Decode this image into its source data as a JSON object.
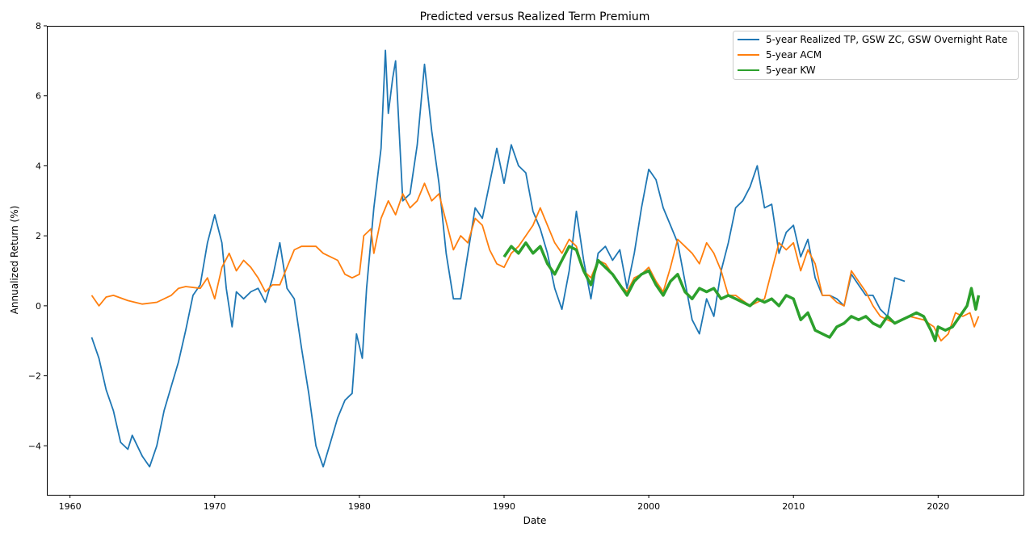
{
  "chart_data": {
    "type": "line",
    "title": "Predicted versus Realized Term Premium",
    "xlabel": "Date",
    "ylabel": "Annualized Return (%)",
    "xlim": [
      1958.4,
      2025.9
    ],
    "ylim": [
      -5.4,
      8
    ],
    "xticks": [
      1960,
      1970,
      1980,
      1990,
      2000,
      2010,
      2020
    ],
    "yticks": [
      -4,
      -2,
      0,
      2,
      4,
      6,
      8
    ],
    "ytick_labels": [
      "−4",
      "−2",
      "0",
      "2",
      "4",
      "6",
      "8"
    ],
    "grid": false,
    "legend_position": "top-right",
    "series": [
      {
        "name": "5-year Realized TP, GSW ZC, GSW Overnight Rate",
        "color": "#1f77b4",
        "points": [
          [
            1961.5,
            -0.9
          ],
          [
            1962,
            -1.5
          ],
          [
            1962.5,
            -2.4
          ],
          [
            1963,
            -3.0
          ],
          [
            1963.5,
            -3.9
          ],
          [
            1964,
            -4.1
          ],
          [
            1964.3,
            -3.7
          ],
          [
            1965,
            -4.3
          ],
          [
            1965.5,
            -4.6
          ],
          [
            1966,
            -4.0
          ],
          [
            1966.5,
            -3.0
          ],
          [
            1967,
            -2.3
          ],
          [
            1967.5,
            -1.6
          ],
          [
            1968,
            -0.7
          ],
          [
            1968.5,
            0.3
          ],
          [
            1969,
            0.6
          ],
          [
            1969.5,
            1.8
          ],
          [
            1970,
            2.6
          ],
          [
            1970.5,
            1.8
          ],
          [
            1970.8,
            0.5
          ],
          [
            1971.2,
            -0.6
          ],
          [
            1971.5,
            0.4
          ],
          [
            1972,
            0.2
          ],
          [
            1972.5,
            0.4
          ],
          [
            1973,
            0.5
          ],
          [
            1973.5,
            0.1
          ],
          [
            1974,
            0.8
          ],
          [
            1974.5,
            1.8
          ],
          [
            1975,
            0.5
          ],
          [
            1975.5,
            0.2
          ],
          [
            1976,
            -1.2
          ],
          [
            1976.5,
            -2.5
          ],
          [
            1977,
            -4.0
          ],
          [
            1977.5,
            -4.6
          ],
          [
            1978,
            -3.9
          ],
          [
            1978.5,
            -3.2
          ],
          [
            1979,
            -2.7
          ],
          [
            1979.5,
            -2.5
          ],
          [
            1979.8,
            -0.8
          ],
          [
            1980.2,
            -1.5
          ],
          [
            1980.5,
            0.5
          ],
          [
            1981,
            2.8
          ],
          [
            1981.5,
            4.5
          ],
          [
            1981.8,
            7.3
          ],
          [
            1982,
            5.5
          ],
          [
            1982.3,
            6.5
          ],
          [
            1982.5,
            7.0
          ],
          [
            1983,
            3.0
          ],
          [
            1983.5,
            3.2
          ],
          [
            1984,
            4.6
          ],
          [
            1984.5,
            6.9
          ],
          [
            1985,
            5.0
          ],
          [
            1985.5,
            3.5
          ],
          [
            1986,
            1.5
          ],
          [
            1986.5,
            0.2
          ],
          [
            1987,
            0.2
          ],
          [
            1987.5,
            1.5
          ],
          [
            1988,
            2.8
          ],
          [
            1988.5,
            2.5
          ],
          [
            1989,
            3.5
          ],
          [
            1989.5,
            4.5
          ],
          [
            1990,
            3.5
          ],
          [
            1990.5,
            4.6
          ],
          [
            1991,
            4.0
          ],
          [
            1991.5,
            3.8
          ],
          [
            1992,
            2.7
          ],
          [
            1992.5,
            2.2
          ],
          [
            1993,
            1.5
          ],
          [
            1993.5,
            0.5
          ],
          [
            1994,
            -0.1
          ],
          [
            1994.5,
            1.0
          ],
          [
            1995,
            2.7
          ],
          [
            1995.5,
            1.3
          ],
          [
            1996,
            0.2
          ],
          [
            1996.5,
            1.5
          ],
          [
            1997,
            1.7
          ],
          [
            1997.5,
            1.3
          ],
          [
            1998,
            1.6
          ],
          [
            1998.5,
            0.5
          ],
          [
            1999,
            1.5
          ],
          [
            1999.5,
            2.8
          ],
          [
            2000,
            3.9
          ],
          [
            2000.5,
            3.6
          ],
          [
            2001,
            2.8
          ],
          [
            2001.5,
            2.3
          ],
          [
            2002,
            1.8
          ],
          [
            2002.5,
            0.7
          ],
          [
            2003,
            -0.4
          ],
          [
            2003.5,
            -0.8
          ],
          [
            2004,
            0.2
          ],
          [
            2004.5,
            -0.3
          ],
          [
            2005,
            1.0
          ],
          [
            2005.5,
            1.8
          ],
          [
            2006,
            2.8
          ],
          [
            2006.5,
            3.0
          ],
          [
            2007,
            3.4
          ],
          [
            2007.5,
            4.0
          ],
          [
            2008,
            2.8
          ],
          [
            2008.5,
            2.9
          ],
          [
            2009,
            1.5
          ],
          [
            2009.5,
            2.1
          ],
          [
            2010,
            2.3
          ],
          [
            2010.5,
            1.4
          ],
          [
            2011,
            1.9
          ],
          [
            2011.5,
            0.8
          ],
          [
            2012,
            0.3
          ],
          [
            2012.5,
            0.3
          ],
          [
            2013,
            0.2
          ],
          [
            2013.5,
            0.0
          ],
          [
            2014,
            0.9
          ],
          [
            2014.5,
            0.6
          ],
          [
            2015,
            0.3
          ],
          [
            2015.5,
            0.3
          ],
          [
            2016,
            -0.1
          ],
          [
            2016.5,
            -0.3
          ],
          [
            2017,
            0.8
          ],
          [
            2017.7,
            0.7
          ]
        ]
      },
      {
        "name": "5-year ACM",
        "color": "#ff7f0e",
        "points": [
          [
            1961.5,
            0.3
          ],
          [
            1962,
            0.0
          ],
          [
            1962.5,
            0.25
          ],
          [
            1963,
            0.3
          ],
          [
            1964,
            0.15
          ],
          [
            1965,
            0.05
          ],
          [
            1966,
            0.1
          ],
          [
            1967,
            0.3
          ],
          [
            1967.5,
            0.5
          ],
          [
            1968,
            0.55
          ],
          [
            1969,
            0.5
          ],
          [
            1969.5,
            0.8
          ],
          [
            1970,
            0.2
          ],
          [
            1970.5,
            1.1
          ],
          [
            1971,
            1.5
          ],
          [
            1971.5,
            1.0
          ],
          [
            1972,
            1.3
          ],
          [
            1972.5,
            1.1
          ],
          [
            1973,
            0.8
          ],
          [
            1973.5,
            0.4
          ],
          [
            1974,
            0.6
          ],
          [
            1974.5,
            0.6
          ],
          [
            1975,
            1.1
          ],
          [
            1975.5,
            1.6
          ],
          [
            1976,
            1.7
          ],
          [
            1977,
            1.7
          ],
          [
            1977.5,
            1.5
          ],
          [
            1978,
            1.4
          ],
          [
            1978.5,
            1.3
          ],
          [
            1979,
            0.9
          ],
          [
            1979.5,
            0.8
          ],
          [
            1980,
            0.9
          ],
          [
            1980.3,
            2.0
          ],
          [
            1980.8,
            2.2
          ],
          [
            1981,
            1.5
          ],
          [
            1981.5,
            2.5
          ],
          [
            1982,
            3.0
          ],
          [
            1982.5,
            2.6
          ],
          [
            1983,
            3.2
          ],
          [
            1983.5,
            2.8
          ],
          [
            1984,
            3.0
          ],
          [
            1984.5,
            3.5
          ],
          [
            1985,
            3.0
          ],
          [
            1985.5,
            3.2
          ],
          [
            1986,
            2.4
          ],
          [
            1986.5,
            1.6
          ],
          [
            1987,
            2.0
          ],
          [
            1987.5,
            1.8
          ],
          [
            1988,
            2.5
          ],
          [
            1988.5,
            2.3
          ],
          [
            1989,
            1.6
          ],
          [
            1989.5,
            1.2
          ],
          [
            1990,
            1.1
          ],
          [
            1990.5,
            1.5
          ],
          [
            1991,
            1.7
          ],
          [
            1991.5,
            2.0
          ],
          [
            1992,
            2.3
          ],
          [
            1992.5,
            2.8
          ],
          [
            1993,
            2.3
          ],
          [
            1993.5,
            1.8
          ],
          [
            1994,
            1.5
          ],
          [
            1994.5,
            1.9
          ],
          [
            1995,
            1.7
          ],
          [
            1995.5,
            1.0
          ],
          [
            1996,
            0.8
          ],
          [
            1996.5,
            1.3
          ],
          [
            1997,
            1.2
          ],
          [
            1997.5,
            0.9
          ],
          [
            1998,
            0.6
          ],
          [
            1998.5,
            0.4
          ],
          [
            1999,
            0.8
          ],
          [
            1999.5,
            0.9
          ],
          [
            2000,
            1.1
          ],
          [
            2000.5,
            0.7
          ],
          [
            2001,
            0.4
          ],
          [
            2001.5,
            1.1
          ],
          [
            2002,
            1.9
          ],
          [
            2002.5,
            1.7
          ],
          [
            2003,
            1.5
          ],
          [
            2003.5,
            1.2
          ],
          [
            2004,
            1.8
          ],
          [
            2004.5,
            1.5
          ],
          [
            2005,
            1.0
          ],
          [
            2005.5,
            0.3
          ],
          [
            2006,
            0.3
          ],
          [
            2007,
            0.0
          ],
          [
            2007.5,
            0.1
          ],
          [
            2008,
            0.2
          ],
          [
            2008.5,
            1.0
          ],
          [
            2009,
            1.8
          ],
          [
            2009.5,
            1.6
          ],
          [
            2010,
            1.8
          ],
          [
            2010.5,
            1.0
          ],
          [
            2011,
            1.6
          ],
          [
            2011.5,
            1.2
          ],
          [
            2012,
            0.3
          ],
          [
            2012.5,
            0.3
          ],
          [
            2013,
            0.1
          ],
          [
            2013.5,
            0.0
          ],
          [
            2014,
            1.0
          ],
          [
            2014.5,
            0.7
          ],
          [
            2015,
            0.4
          ],
          [
            2015.5,
            0.0
          ],
          [
            2016,
            -0.3
          ],
          [
            2016.5,
            -0.4
          ],
          [
            2017,
            -0.5
          ],
          [
            2018,
            -0.3
          ],
          [
            2019,
            -0.4
          ],
          [
            2019.7,
            -0.6
          ],
          [
            2020.2,
            -1.0
          ],
          [
            2020.7,
            -0.8
          ],
          [
            2021.2,
            -0.2
          ],
          [
            2021.7,
            -0.3
          ],
          [
            2022.2,
            -0.2
          ],
          [
            2022.5,
            -0.6
          ],
          [
            2022.8,
            -0.3
          ]
        ]
      },
      {
        "name": "5-year KW",
        "color": "#2ca02c",
        "points": [
          [
            1990,
            1.4
          ],
          [
            1990.5,
            1.7
          ],
          [
            1991,
            1.5
          ],
          [
            1991.5,
            1.8
          ],
          [
            1992,
            1.5
          ],
          [
            1992.5,
            1.7
          ],
          [
            1993,
            1.2
          ],
          [
            1993.5,
            0.9
          ],
          [
            1994,
            1.3
          ],
          [
            1994.5,
            1.7
          ],
          [
            1995,
            1.6
          ],
          [
            1995.5,
            1.0
          ],
          [
            1996,
            0.6
          ],
          [
            1996.5,
            1.3
          ],
          [
            1997,
            1.1
          ],
          [
            1997.5,
            0.9
          ],
          [
            1998,
            0.6
          ],
          [
            1998.5,
            0.3
          ],
          [
            1999,
            0.7
          ],
          [
            1999.5,
            0.9
          ],
          [
            2000,
            1.0
          ],
          [
            2000.5,
            0.6
          ],
          [
            2001,
            0.3
          ],
          [
            2001.5,
            0.7
          ],
          [
            2002,
            0.9
          ],
          [
            2002.5,
            0.4
          ],
          [
            2003,
            0.2
          ],
          [
            2003.5,
            0.5
          ],
          [
            2004,
            0.4
          ],
          [
            2004.5,
            0.5
          ],
          [
            2005,
            0.2
          ],
          [
            2005.5,
            0.3
          ],
          [
            2006,
            0.2
          ],
          [
            2006.5,
            0.1
          ],
          [
            2007,
            0.0
          ],
          [
            2007.5,
            0.2
          ],
          [
            2008,
            0.1
          ],
          [
            2008.5,
            0.2
          ],
          [
            2009,
            0.0
          ],
          [
            2009.5,
            0.3
          ],
          [
            2010,
            0.2
          ],
          [
            2010.5,
            -0.4
          ],
          [
            2011,
            -0.2
          ],
          [
            2011.5,
            -0.7
          ],
          [
            2012,
            -0.8
          ],
          [
            2012.5,
            -0.9
          ],
          [
            2013,
            -0.6
          ],
          [
            2013.5,
            -0.5
          ],
          [
            2014,
            -0.3
          ],
          [
            2014.5,
            -0.4
          ],
          [
            2015,
            -0.3
          ],
          [
            2015.5,
            -0.5
          ],
          [
            2016,
            -0.6
          ],
          [
            2016.5,
            -0.3
          ],
          [
            2017,
            -0.5
          ],
          [
            2017.5,
            -0.4
          ],
          [
            2018,
            -0.3
          ],
          [
            2018.5,
            -0.2
          ],
          [
            2019,
            -0.3
          ],
          [
            2019.5,
            -0.7
          ],
          [
            2019.8,
            -1.0
          ],
          [
            2020,
            -0.6
          ],
          [
            2020.5,
            -0.7
          ],
          [
            2021,
            -0.6
          ],
          [
            2021.5,
            -0.3
          ],
          [
            2022,
            0.0
          ],
          [
            2022.3,
            0.5
          ],
          [
            2022.6,
            -0.1
          ],
          [
            2022.8,
            0.3
          ]
        ]
      }
    ]
  }
}
